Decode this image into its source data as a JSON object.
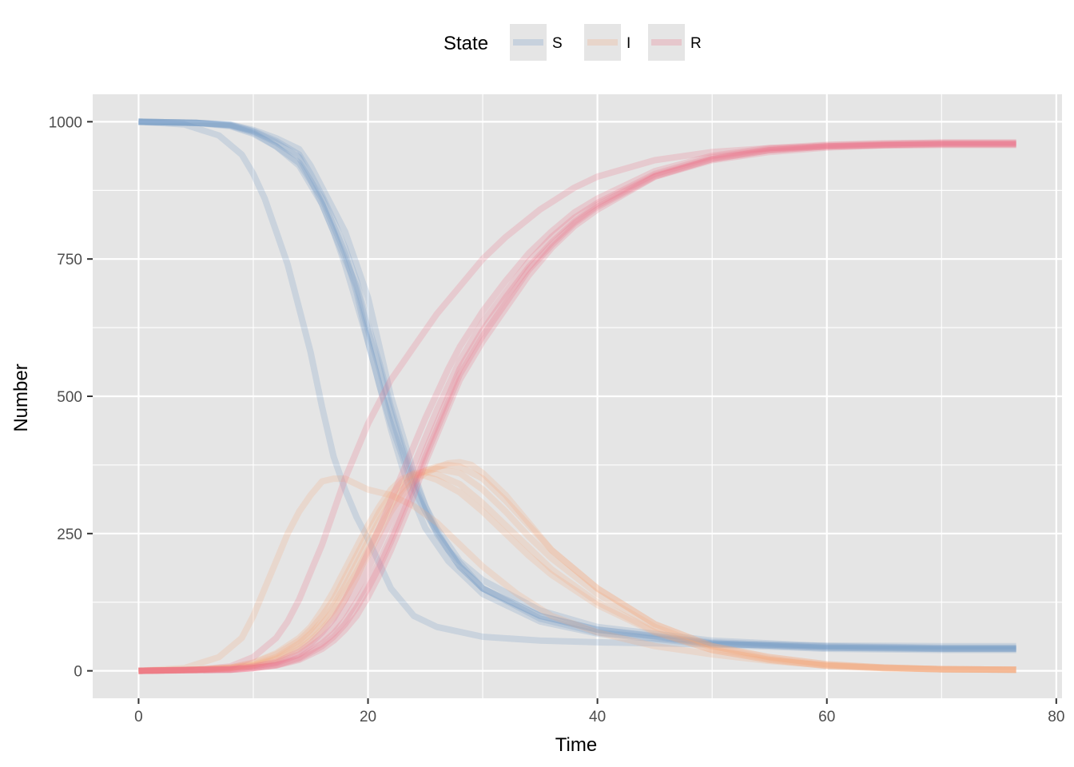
{
  "chart_data": {
    "type": "line",
    "title": "",
    "xlabel": "Time",
    "ylabel": "Number",
    "xlim": [
      -4,
      80.5
    ],
    "ylim": [
      -50,
      1050
    ],
    "x_ticks": [
      0,
      20,
      40,
      60,
      80
    ],
    "y_ticks": [
      0,
      250,
      500,
      750,
      1000
    ],
    "x_tick_labels": [
      "0",
      "20",
      "40",
      "60",
      "80"
    ],
    "y_tick_labels": [
      "0",
      "250",
      "500",
      "750",
      "1000"
    ],
    "grid": true,
    "legend": {
      "title": "State",
      "position": "top",
      "entries": [
        {
          "label": "S",
          "color": "#6f97c6"
        },
        {
          "label": "I",
          "color": "#f4a77a"
        },
        {
          "label": "R",
          "color": "#ec6f82"
        }
      ]
    },
    "colors": {
      "S": "#6f97c6",
      "I": "#f4a77a",
      "R": "#ec6f82",
      "panel": "#e5e5e5",
      "grid": "#ffffff"
    },
    "series": [
      {
        "state": "S",
        "run": 1,
        "x": [
          0,
          4,
          7,
          9,
          10,
          11,
          12,
          13,
          14,
          15,
          16,
          17,
          18,
          19,
          20,
          22,
          24,
          26,
          30,
          35,
          40,
          50,
          60,
          70,
          76.5
        ],
        "y": [
          1000,
          995,
          975,
          940,
          905,
          860,
          800,
          740,
          660,
          580,
          480,
          390,
          330,
          280,
          240,
          150,
          100,
          80,
          62,
          55,
          52,
          48,
          46,
          45,
          45
        ]
      },
      {
        "state": "S",
        "run": 2,
        "x": [
          0,
          5,
          8,
          10,
          12,
          14,
          15,
          16,
          17,
          18,
          19,
          20,
          21,
          22,
          23,
          24,
          25,
          26,
          28,
          30,
          35,
          40,
          50,
          60,
          70,
          76.5
        ],
        "y": [
          1000,
          998,
          995,
          985,
          970,
          950,
          920,
          880,
          840,
          800,
          740,
          680,
          590,
          500,
          430,
          360,
          300,
          260,
          200,
          165,
          110,
          80,
          55,
          45,
          42,
          42
        ]
      },
      {
        "state": "S",
        "run": 3,
        "x": [
          0,
          5,
          8,
          10,
          12,
          14,
          15,
          16,
          17,
          18,
          19,
          20,
          21,
          22,
          23,
          24,
          25,
          26,
          28,
          30,
          35,
          40,
          50,
          60,
          70,
          76.5
        ],
        "y": [
          1000,
          998,
          994,
          983,
          965,
          940,
          905,
          865,
          820,
          770,
          710,
          630,
          560,
          480,
          410,
          350,
          300,
          250,
          190,
          150,
          100,
          75,
          52,
          44,
          41,
          41
        ]
      },
      {
        "state": "S",
        "run": 4,
        "x": [
          0,
          5,
          8,
          10,
          12,
          14,
          15,
          16,
          17,
          18,
          19,
          20,
          21,
          22,
          23,
          24,
          26,
          28,
          30,
          35,
          40,
          50,
          60,
          70,
          76.5
        ],
        "y": [
          1000,
          998,
          994,
          982,
          962,
          935,
          895,
          850,
          800,
          740,
          670,
          600,
          520,
          450,
          390,
          330,
          250,
          190,
          150,
          100,
          75,
          50,
          42,
          40,
          40
        ]
      },
      {
        "state": "S",
        "run": 5,
        "x": [
          0,
          5,
          8,
          10,
          12,
          14,
          16,
          17,
          18,
          19,
          20,
          21,
          22,
          23,
          24,
          25,
          27,
          30,
          35,
          40,
          50,
          60,
          70,
          76.5
        ],
        "y": [
          1000,
          998,
          993,
          980,
          955,
          920,
          850,
          800,
          750,
          700,
          620,
          550,
          470,
          400,
          340,
          290,
          220,
          150,
          95,
          70,
          50,
          42,
          40,
          40
        ]
      },
      {
        "state": "S",
        "run": 6,
        "x": [
          0,
          5,
          8,
          10,
          12,
          14,
          16,
          17,
          18,
          19,
          20,
          21,
          22,
          23,
          24,
          25,
          27,
          30,
          35,
          40,
          50,
          60,
          70,
          76.5
        ],
        "y": [
          1000,
          998,
          992,
          978,
          955,
          925,
          860,
          810,
          760,
          690,
          600,
          520,
          440,
          370,
          310,
          260,
          200,
          140,
          90,
          68,
          48,
          40,
          38,
          38
        ]
      },
      {
        "state": "I",
        "run": 1,
        "x": [
          0,
          4,
          7,
          9,
          10,
          11,
          12,
          13,
          14,
          15,
          16,
          17,
          18,
          19,
          20,
          21,
          22,
          24,
          26,
          28,
          30,
          33,
          36,
          40,
          45,
          50,
          55,
          60,
          65,
          70,
          76.5
        ],
        "y": [
          0,
          5,
          25,
          60,
          100,
          150,
          200,
          250,
          290,
          320,
          345,
          350,
          350,
          340,
          330,
          325,
          320,
          300,
          270,
          230,
          190,
          140,
          100,
          70,
          45,
          30,
          18,
          10,
          6,
          3,
          2
        ]
      },
      {
        "state": "I",
        "run": 2,
        "x": [
          0,
          5,
          8,
          10,
          12,
          14,
          15,
          16,
          17,
          18,
          19,
          20,
          21,
          22,
          23,
          24,
          25,
          26,
          27,
          28,
          29,
          30,
          32,
          34,
          36,
          40,
          45,
          50,
          55,
          60,
          65,
          70,
          76.5
        ],
        "y": [
          0,
          2,
          5,
          10,
          20,
          40,
          55,
          75,
          100,
          130,
          170,
          210,
          250,
          290,
          320,
          345,
          360,
          370,
          378,
          380,
          375,
          360,
          320,
          270,
          220,
          150,
          85,
          45,
          25,
          12,
          6,
          3,
          2
        ]
      },
      {
        "state": "I",
        "run": 3,
        "x": [
          0,
          5,
          8,
          10,
          12,
          14,
          15,
          16,
          17,
          18,
          19,
          20,
          21,
          22,
          23,
          24,
          25,
          26,
          27,
          28,
          30,
          32,
          34,
          36,
          40,
          45,
          50,
          55,
          60,
          65,
          70,
          76.5
        ],
        "y": [
          0,
          2,
          5,
          10,
          22,
          45,
          62,
          85,
          110,
          145,
          180,
          220,
          260,
          300,
          330,
          350,
          365,
          372,
          375,
          372,
          350,
          310,
          265,
          220,
          150,
          85,
          45,
          25,
          12,
          6,
          3,
          2
        ]
      },
      {
        "state": "I",
        "run": 4,
        "x": [
          0,
          5,
          8,
          10,
          12,
          14,
          15,
          16,
          17,
          18,
          19,
          20,
          21,
          22,
          23,
          24,
          25,
          26,
          28,
          30,
          32,
          34,
          36,
          40,
          45,
          50,
          55,
          60,
          65,
          70,
          76.5
        ],
        "y": [
          0,
          2,
          5,
          12,
          25,
          50,
          68,
          90,
          120,
          155,
          195,
          235,
          275,
          310,
          335,
          355,
          365,
          368,
          360,
          330,
          290,
          245,
          205,
          140,
          80,
          42,
          22,
          10,
          5,
          3,
          2
        ]
      },
      {
        "state": "I",
        "run": 5,
        "x": [
          0,
          5,
          8,
          10,
          12,
          14,
          15,
          16,
          17,
          18,
          19,
          20,
          21,
          22,
          23,
          24,
          25,
          26,
          28,
          30,
          32,
          34,
          36,
          40,
          45,
          50,
          55,
          60,
          65,
          70,
          76.5
        ],
        "y": [
          0,
          2,
          6,
          14,
          30,
          55,
          75,
          100,
          130,
          170,
          210,
          250,
          290,
          320,
          345,
          360,
          362,
          358,
          340,
          305,
          265,
          225,
          185,
          125,
          72,
          38,
          20,
          9,
          5,
          3,
          2
        ]
      },
      {
        "state": "I",
        "run": 6,
        "x": [
          0,
          5,
          8,
          10,
          12,
          14,
          15,
          16,
          17,
          18,
          19,
          20,
          21,
          22,
          23,
          24,
          25,
          26,
          28,
          30,
          32,
          34,
          36,
          40,
          45,
          50,
          55,
          60,
          65,
          70,
          76.5
        ],
        "y": [
          0,
          2,
          6,
          15,
          32,
          60,
          80,
          110,
          145,
          185,
          225,
          265,
          300,
          330,
          350,
          358,
          355,
          348,
          325,
          290,
          250,
          210,
          175,
          120,
          70,
          38,
          20,
          9,
          5,
          3,
          2
        ]
      },
      {
        "state": "R",
        "run": 1,
        "x": [
          0,
          5,
          8,
          10,
          12,
          13,
          14,
          15,
          16,
          17,
          18,
          19,
          20,
          21,
          22,
          23,
          24,
          26,
          28,
          30,
          32,
          35,
          38,
          40,
          45,
          50,
          55,
          60,
          65,
          70,
          76.5
        ],
        "y": [
          0,
          2,
          8,
          25,
          60,
          90,
          130,
          180,
          230,
          290,
          350,
          400,
          450,
          490,
          530,
          560,
          590,
          650,
          700,
          750,
          790,
          840,
          880,
          900,
          930,
          945,
          952,
          955,
          957,
          958,
          958
        ]
      },
      {
        "state": "R",
        "run": 2,
        "x": [
          0,
          8,
          10,
          12,
          14,
          16,
          17,
          18,
          19,
          20,
          21,
          22,
          23,
          24,
          25,
          26,
          27,
          28,
          30,
          32,
          34,
          36,
          38,
          40,
          45,
          50,
          55,
          60,
          65,
          70,
          76.5
        ],
        "y": [
          0,
          2,
          5,
          10,
          20,
          40,
          55,
          75,
          100,
          135,
          175,
          220,
          270,
          320,
          380,
          430,
          480,
          530,
          600,
          660,
          720,
          770,
          810,
          840,
          900,
          930,
          945,
          953,
          957,
          958,
          958
        ]
      },
      {
        "state": "R",
        "run": 3,
        "x": [
          0,
          8,
          10,
          12,
          14,
          16,
          17,
          18,
          19,
          20,
          21,
          22,
          23,
          24,
          25,
          26,
          27,
          28,
          30,
          32,
          34,
          36,
          38,
          40,
          45,
          50,
          55,
          60,
          65,
          70,
          76.5
        ],
        "y": [
          0,
          2,
          5,
          10,
          22,
          45,
          62,
          85,
          115,
          150,
          190,
          235,
          285,
          335,
          390,
          440,
          490,
          540,
          610,
          670,
          730,
          775,
          815,
          845,
          900,
          932,
          948,
          955,
          958,
          960,
          960
        ]
      },
      {
        "state": "R",
        "run": 4,
        "x": [
          0,
          8,
          10,
          12,
          14,
          16,
          17,
          18,
          19,
          20,
          21,
          22,
          23,
          24,
          25,
          26,
          27,
          28,
          30,
          32,
          34,
          36,
          38,
          40,
          45,
          50,
          55,
          60,
          65,
          70,
          76.5
        ],
        "y": [
          0,
          2,
          5,
          11,
          24,
          50,
          68,
          92,
          125,
          160,
          200,
          245,
          295,
          345,
          400,
          450,
          500,
          550,
          620,
          680,
          735,
          780,
          818,
          848,
          902,
          932,
          948,
          955,
          958,
          960,
          960
        ]
      },
      {
        "state": "R",
        "run": 5,
        "x": [
          0,
          8,
          10,
          12,
          14,
          16,
          17,
          18,
          19,
          20,
          21,
          22,
          23,
          24,
          25,
          26,
          27,
          28,
          30,
          32,
          34,
          36,
          38,
          40,
          45,
          50,
          55,
          60,
          65,
          70,
          76.5
        ],
        "y": [
          0,
          3,
          7,
          14,
          30,
          60,
          80,
          110,
          145,
          185,
          230,
          275,
          325,
          375,
          425,
          475,
          520,
          565,
          635,
          690,
          745,
          790,
          825,
          852,
          905,
          935,
          950,
          957,
          960,
          962,
          962
        ]
      },
      {
        "state": "R",
        "run": 6,
        "x": [
          0,
          8,
          10,
          12,
          14,
          15,
          16,
          17,
          18,
          19,
          20,
          21,
          22,
          23,
          24,
          25,
          26,
          27,
          28,
          30,
          32,
          34,
          36,
          38,
          40,
          45,
          50,
          55,
          60,
          65,
          70,
          76.5
        ],
        "y": [
          0,
          3,
          8,
          16,
          35,
          50,
          70,
          95,
          130,
          170,
          215,
          260,
          310,
          360,
          410,
          460,
          505,
          550,
          590,
          655,
          710,
          760,
          800,
          835,
          860,
          910,
          938,
          952,
          958,
          961,
          962,
          962
        ]
      }
    ]
  }
}
